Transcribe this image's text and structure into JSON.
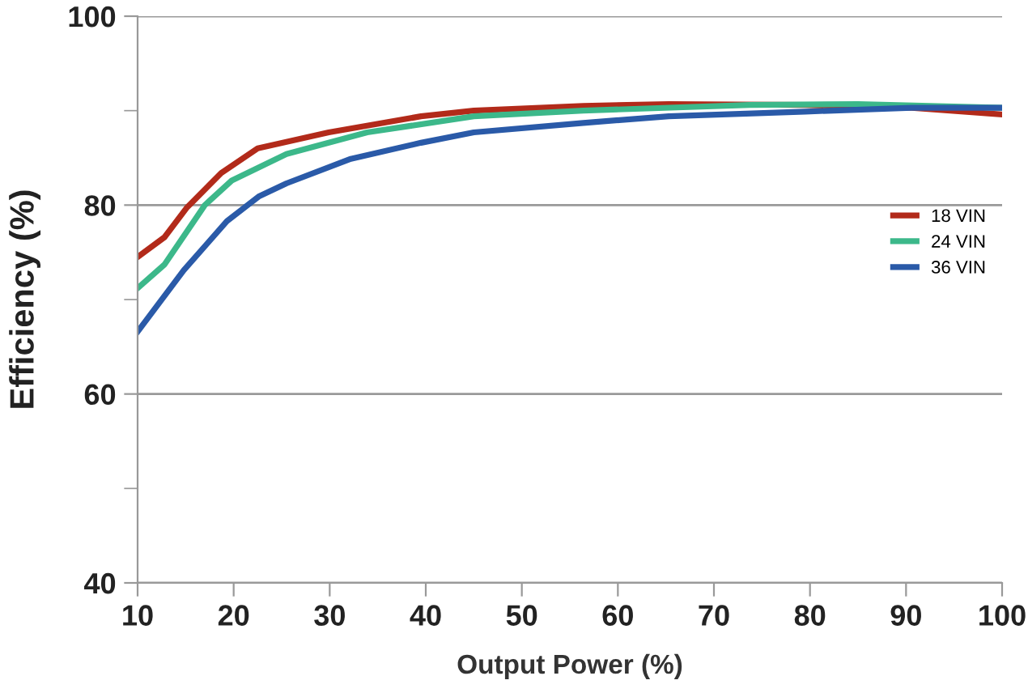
{
  "chart_data": {
    "type": "line",
    "xlabel": "Output Power (%)",
    "ylabel": "Efficiency (%)",
    "xlim": [
      10,
      100
    ],
    "xticks": [
      10,
      20,
      30,
      40,
      50,
      60,
      70,
      80,
      90,
      100
    ],
    "ylim": [
      40,
      100
    ],
    "yticks": [
      40,
      {
        "value": 50,
        "label": null
      },
      60,
      {
        "value": 70,
        "label": null
      },
      80,
      {
        "value": 90,
        "label": null
      },
      100
    ],
    "grid": "y",
    "legend": "right",
    "line_style": "solid",
    "marker": "none",
    "series": [
      {
        "name": "18 VIN",
        "color": "#b22a1a",
        "x": [
          10,
          12.8,
          15.1,
          18.7,
          22.5,
          29.9,
          39.5,
          45,
          56.4,
          65.3,
          79.5,
          90.6,
          100
        ],
        "values": [
          74.5,
          76.6,
          79.7,
          83.4,
          86.0,
          87.7,
          89.4,
          90.0,
          90.5,
          90.7,
          90.6,
          90.3,
          89.6
        ]
      },
      {
        "name": "24 VIN",
        "color": "#3cb88a",
        "x": [
          10,
          12.8,
          17,
          19.8,
          25.5,
          33.9,
          45,
          56.4,
          73.7,
          85,
          100
        ],
        "values": [
          71.2,
          73.7,
          80.0,
          82.6,
          85.4,
          87.7,
          89.4,
          90.0,
          90.6,
          90.7,
          90.3
        ]
      },
      {
        "name": "36 VIN",
        "color": "#2a5aa8",
        "x": [
          10,
          14.8,
          19.3,
          22.6,
          25.5,
          32.2,
          39.5,
          45,
          56.4,
          65.3,
          79.5,
          90.6,
          100
        ],
        "values": [
          66.6,
          73.1,
          78.3,
          80.9,
          82.3,
          84.9,
          86.6,
          87.7,
          88.7,
          89.4,
          89.9,
          90.3,
          90.3
        ]
      }
    ]
  }
}
